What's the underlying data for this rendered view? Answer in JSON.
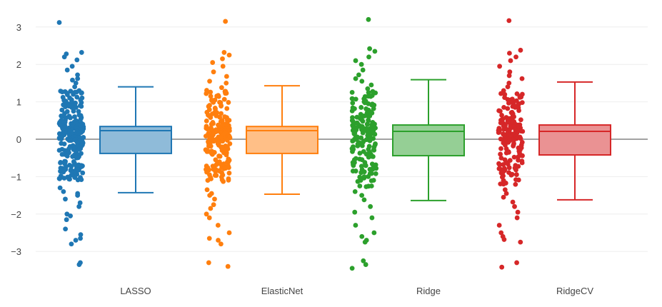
{
  "chart_data": {
    "type": "box",
    "title": "",
    "xlabel": "",
    "ylabel": "",
    "ylim": [
      -3.6,
      3.3
    ],
    "yticks": [
      3,
      2,
      1,
      0,
      -1,
      -2,
      -3
    ],
    "ytick_labels": [
      "3",
      "2",
      "1",
      "0",
      "−1",
      "−2",
      "−3"
    ],
    "grid": true,
    "boxpoints": "all",
    "categories": [
      "LASSO",
      "ElasticNet",
      "Ridge",
      "RidgeCV"
    ],
    "series": [
      {
        "name": "LASSO",
        "color": "#1f77b4",
        "fill": "#8fbbd9",
        "box": {
          "lower_whisker": -1.43,
          "q1": -0.38,
          "median": 0.23,
          "q3": 0.34,
          "upper_whisker": 1.4
        },
        "points": [
          3.12,
          2.32,
          2.28,
          2.2,
          2.12,
          1.95,
          1.85,
          1.72,
          1.62,
          1.58,
          1.5,
          1.4,
          1.3,
          1.27,
          1.24,
          1.2,
          1.12,
          1.05,
          0.98,
          0.92,
          0.9,
          0.85,
          0.75,
          0.65,
          0.6,
          0.55,
          0.5,
          0.45,
          0.42,
          0.4,
          0.38,
          0.35,
          0.33,
          0.3,
          0.3,
          0.28,
          0.27,
          0.25,
          0.24,
          0.22,
          0.2,
          0.18,
          0.15,
          0.12,
          0.1,
          0.08,
          0.05,
          0.02,
          0,
          -0.03,
          -0.07,
          -0.1,
          -0.15,
          -0.2,
          -0.25,
          -0.3,
          -0.33,
          -0.38,
          -0.42,
          -0.5,
          -0.6,
          -0.65,
          -0.7,
          -0.72,
          -0.75,
          -0.77,
          -0.8,
          -0.82,
          -0.85,
          -0.9,
          -0.95,
          -1.0,
          -1.05,
          -1.08,
          -1.3,
          -1.4,
          -1.45,
          -1.5,
          -1.6,
          -1.7,
          -1.8,
          -2.0,
          -2.05,
          -2.15,
          -2.4,
          -2.55,
          -2.65,
          -2.7,
          -2.8,
          -3.3,
          -3.35
        ]
      },
      {
        "name": "ElasticNet",
        "color": "#ff7f0e",
        "fill": "#ffbf87",
        "box": {
          "lower_whisker": -1.47,
          "q1": -0.38,
          "median": 0.23,
          "q3": 0.34,
          "upper_whisker": 1.43
        },
        "points": [
          3.15,
          2.32,
          2.25,
          2.15,
          2.05,
          1.95,
          1.8,
          1.68,
          1.55,
          1.5,
          1.38,
          1.28,
          1.22,
          1.15,
          1.05,
          0.98,
          0.9,
          0.82,
          0.72,
          0.65,
          0.58,
          0.5,
          0.45,
          0.4,
          0.36,
          0.33,
          0.3,
          0.28,
          0.26,
          0.24,
          0.22,
          0.2,
          0.18,
          0.15,
          0.12,
          0.1,
          0.06,
          0.03,
          0,
          -0.04,
          -0.08,
          -0.12,
          -0.18,
          -0.22,
          -0.28,
          -0.33,
          -0.38,
          -0.45,
          -0.55,
          -0.62,
          -0.68,
          -0.72,
          -0.75,
          -0.78,
          -0.8,
          -0.83,
          -0.88,
          -0.95,
          -1.02,
          -1.1,
          -1.35,
          -1.45,
          -1.5,
          -1.6,
          -1.75,
          -1.85,
          -2.0,
          -2.1,
          -2.3,
          -2.5,
          -2.65,
          -2.7,
          -2.8,
          -3.3,
          -3.4
        ]
      },
      {
        "name": "Ridge",
        "color": "#2ca02c",
        "fill": "#95cf95",
        "box": {
          "lower_whisker": -1.64,
          "q1": -0.44,
          "median": 0.21,
          "q3": 0.38,
          "upper_whisker": 1.59
        },
        "points": [
          3.2,
          2.42,
          2.35,
          2.2,
          2.1,
          2.0,
          1.85,
          1.72,
          1.62,
          1.55,
          1.45,
          1.35,
          1.25,
          1.15,
          1.08,
          1.0,
          0.92,
          0.85,
          0.78,
          0.7,
          0.62,
          0.55,
          0.5,
          0.45,
          0.4,
          0.37,
          0.34,
          0.3,
          0.28,
          0.25,
          0.22,
          0.2,
          0.17,
          0.14,
          0.1,
          0.06,
          0.03,
          0,
          -0.05,
          -0.1,
          -0.15,
          -0.2,
          -0.27,
          -0.33,
          -0.4,
          -0.48,
          -0.55,
          -0.62,
          -0.68,
          -0.72,
          -0.78,
          -0.85,
          -0.92,
          -1.0,
          -1.1,
          -1.25,
          -1.4,
          -1.5,
          -1.62,
          -1.8,
          -1.95,
          -2.1,
          -2.3,
          -2.5,
          -2.6,
          -2.7,
          -2.75,
          -3.25,
          -3.35,
          -3.45
        ]
      },
      {
        "name": "RidgeCV",
        "color": "#d62728",
        "fill": "#ea9293",
        "box": {
          "lower_whisker": -1.62,
          "q1": -0.42,
          "median": 0.21,
          "q3": 0.38,
          "upper_whisker": 1.53
        },
        "points": [
          3.17,
          2.38,
          2.3,
          2.2,
          2.1,
          1.95,
          1.8,
          1.7,
          1.62,
          1.5,
          1.4,
          1.3,
          1.22,
          1.12,
          1.05,
          0.98,
          0.9,
          0.82,
          0.75,
          0.68,
          0.6,
          0.52,
          0.47,
          0.42,
          0.38,
          0.35,
          0.32,
          0.29,
          0.26,
          0.23,
          0.2,
          0.17,
          0.14,
          0.1,
          0.06,
          0.02,
          -0.02,
          -0.07,
          -0.12,
          -0.18,
          -0.25,
          -0.32,
          -0.4,
          -0.48,
          -0.56,
          -0.63,
          -0.7,
          -0.76,
          -0.82,
          -0.9,
          -0.98,
          -1.08,
          -1.2,
          -1.35,
          -1.45,
          -1.55,
          -1.68,
          -1.8,
          -1.95,
          -2.1,
          -2.3,
          -2.5,
          -2.6,
          -2.68,
          -2.75,
          -3.3,
          -3.42
        ]
      }
    ]
  }
}
